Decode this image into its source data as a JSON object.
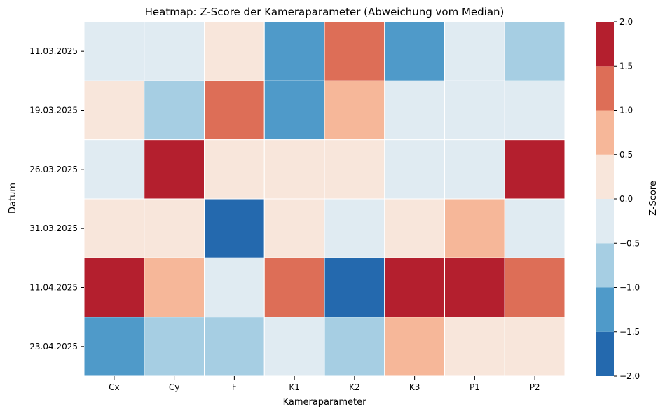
{
  "chart_data": {
    "type": "heatmap",
    "title": "Heatmap: Z-Score der Kameraparameter (Abweichung vom Median)",
    "xlabel": "Kameraparameter",
    "ylabel": "Datum",
    "x_categories": [
      "Cx",
      "Cy",
      "F",
      "K1",
      "K2",
      "K3",
      "P1",
      "P2"
    ],
    "y_categories": [
      "11.03.2025",
      "19.03.2025",
      "26.03.2025",
      "31.03.2025",
      "11.04.2025",
      "23.04.2025"
    ],
    "values": [
      [
        -0.3,
        -0.3,
        0.3,
        -1.3,
        1.3,
        -1.3,
        -0.3,
        -0.8
      ],
      [
        0.3,
        -0.8,
        1.3,
        -1.3,
        0.8,
        -0.3,
        -0.3,
        -0.3
      ],
      [
        -0.3,
        2.0,
        0.3,
        0.3,
        0.3,
        -0.3,
        -0.3,
        2.0
      ],
      [
        0.3,
        0.3,
        -2.0,
        0.3,
        -0.3,
        0.3,
        0.8,
        -0.3
      ],
      [
        2.0,
        0.8,
        -0.3,
        1.3,
        -2.0,
        2.0,
        2.0,
        1.3
      ],
      [
        -1.3,
        -0.8,
        -0.8,
        -0.3,
        -0.8,
        0.8,
        0.3,
        0.3
      ]
    ],
    "colorbar": {
      "label": "Z-Score",
      "vmin": -2.0,
      "vmax": 2.0,
      "ticks": [
        "-2.0",
        "-1.5",
        "-1.0",
        "-0.5",
        "0.0",
        "0.5",
        "1.0",
        "1.5",
        "2.0"
      ],
      "bins": [
        {
          "min": -2.0,
          "max": -1.5,
          "color": "#2469ae"
        },
        {
          "min": -1.5,
          "max": -1.0,
          "color": "#4f9ac9"
        },
        {
          "min": -1.0,
          "max": -0.5,
          "color": "#a6cee3"
        },
        {
          "min": -0.5,
          "max": 0.0,
          "color": "#e0ebf2"
        },
        {
          "min": 0.0,
          "max": 0.5,
          "color": "#f8e6db"
        },
        {
          "min": 0.5,
          "max": 1.0,
          "color": "#f6b799"
        },
        {
          "min": 1.0,
          "max": 1.5,
          "color": "#dd6e57"
        },
        {
          "min": 1.5,
          "max": 2.0,
          "color": "#b41f2e"
        }
      ]
    }
  }
}
